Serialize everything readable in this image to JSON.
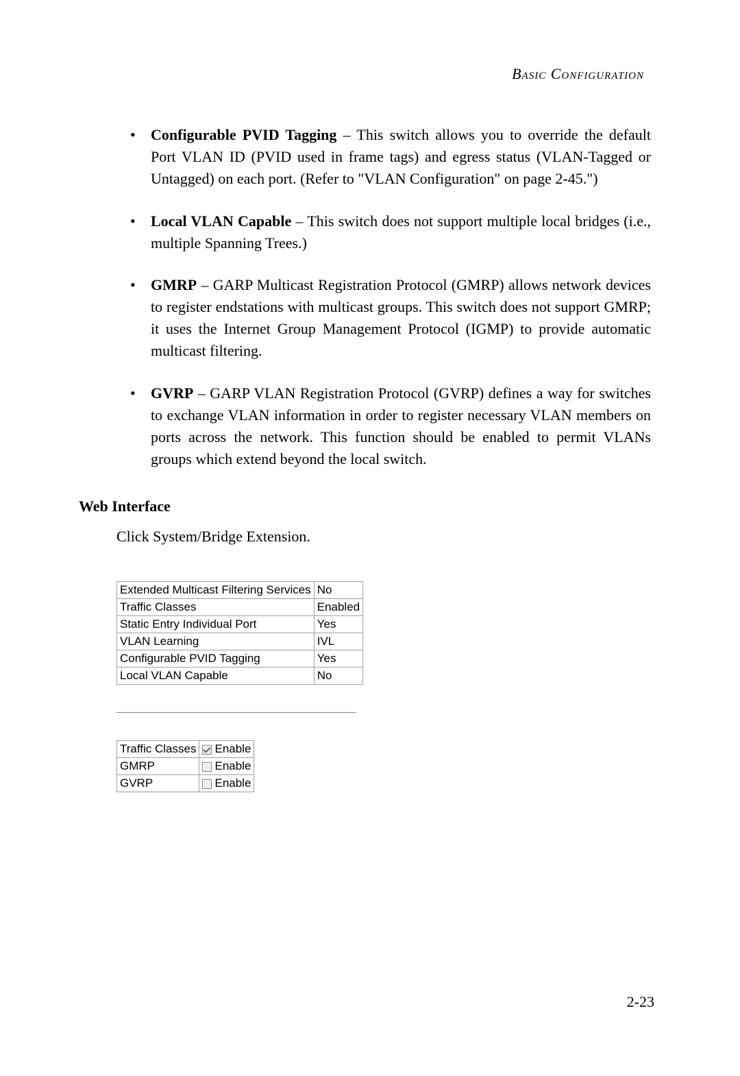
{
  "header": "Basic Configuration",
  "bullets": [
    {
      "title": "Configurable PVID Tagging",
      "text": " – This switch allows you to override the default Port VLAN ID (PVID used in frame tags) and egress status (VLAN-Tagged or Untagged) on each port. (Refer to \"VLAN Configuration\" on page 2-45.\")"
    },
    {
      "title": "Local VLAN Capable",
      "text": " – This switch does not support multiple local bridges (i.e., multiple Spanning Trees.)"
    },
    {
      "title": "GMRP",
      "text": " – GARP Multicast Registration Protocol (GMRP) allows network devices to register endstations with multicast groups. This switch does not support GMRP; it uses the Internet Group Management Protocol (IGMP) to provide automatic multicast filtering."
    },
    {
      "title": "GVRP",
      "text": " – GARP VLAN Registration Protocol (GVRP) defines a way for switches to exchange VLAN information in order to register necessary VLAN members on ports across the network. This function should be enabled to permit VLANs groups which extend beyond the local switch."
    }
  ],
  "section_head": "Web Interface",
  "body_text": "Click System/Bridge Extension.",
  "table1": {
    "rows": [
      {
        "label": "Extended Multicast Filtering Services",
        "value": "No"
      },
      {
        "label": "Traffic Classes",
        "value": "Enabled"
      },
      {
        "label": "Static Entry Individual Port",
        "value": "Yes"
      },
      {
        "label": "VLAN Learning",
        "value": "IVL"
      },
      {
        "label": "Configurable PVID Tagging",
        "value": "Yes"
      },
      {
        "label": "Local VLAN Capable",
        "value": "No"
      }
    ]
  },
  "table2": {
    "rows": [
      {
        "label": "Traffic Classes",
        "checked": true,
        "txt": "Enable"
      },
      {
        "label": "GMRP",
        "checked": false,
        "txt": "Enable"
      },
      {
        "label": "GVRP",
        "checked": false,
        "txt": "Enable"
      }
    ]
  },
  "page_number": "2-23",
  "style": {
    "text_color": "#000000",
    "bg_color": "#ffffff",
    "border_color": "#a0a0a0",
    "body_fontsize": 22,
    "ui_fontsize": 17
  }
}
